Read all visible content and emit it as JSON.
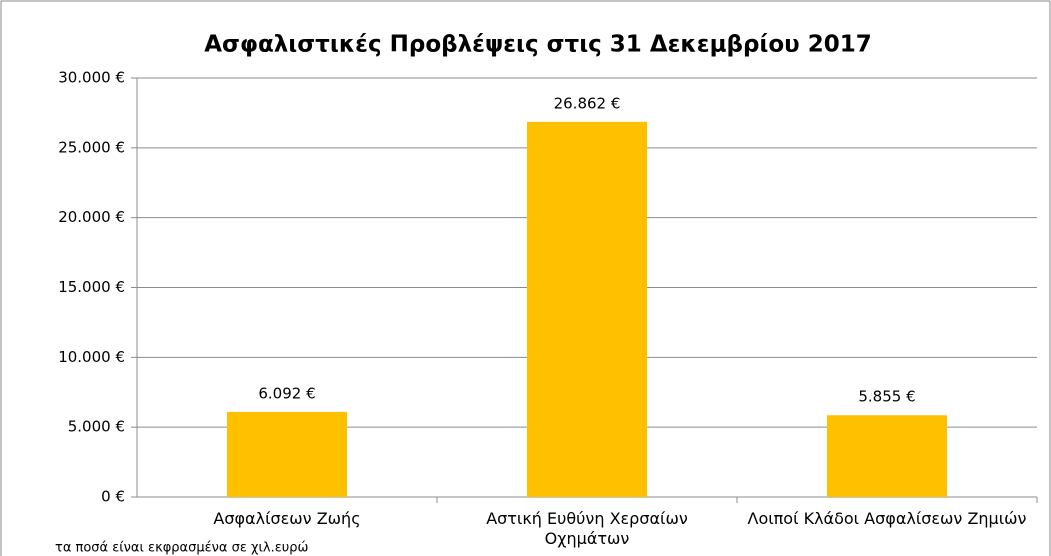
{
  "chart_data": {
    "type": "bar",
    "title": "Ασφαλιστικές Προβλέψεις στις 31 Δεκεμβρίου 2017",
    "categories": [
      "Ασφαλίσεων Ζωής",
      "Αστική Ευθύνη Χερσαίων Οχημάτων",
      "Λοιποί Κλάδοι Ασφαλίσεων Ζημιών"
    ],
    "values": [
      6092,
      26862,
      5855
    ],
    "value_labels": [
      "6.092 €",
      "26.862 €",
      "5.855 €"
    ],
    "color": "#ffc000",
    "ylim": [
      0,
      30000
    ],
    "yticks": [
      {
        "value": 0,
        "label": "0 €"
      },
      {
        "value": 5000,
        "label": "5.000 €"
      },
      {
        "value": 10000,
        "label": "10.000 €"
      },
      {
        "value": 15000,
        "label": "15.000 €"
      },
      {
        "value": 20000,
        "label": "20.000 €"
      },
      {
        "value": 25000,
        "label": "25.000 €"
      },
      {
        "value": 30000,
        "label": "30.000 €"
      }
    ],
    "grid": true,
    "annotation": "τα ποσά είναι εκφρασμένα σε χιλ.ευρώ"
  }
}
